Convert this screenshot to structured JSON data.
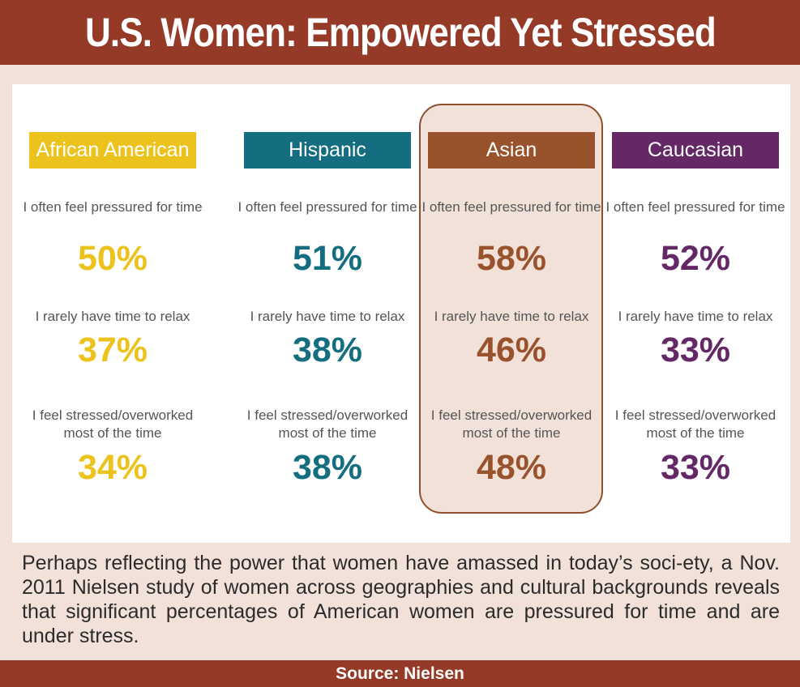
{
  "title": "U.S. Women: Empowered Yet Stressed",
  "description": "Perhaps reflecting the power that women have amassed in today’s soci-ety, a Nov. 2011 Nielsen study of women across geographies and cultural backgrounds reveals that significant percentages of American women are pressured for time and are under stress.",
  "source": "Source: Nielsen",
  "colors": {
    "title_bar": "#963a28",
    "background": "#f2e1d9",
    "highlight_border": "#8e4f2c"
  },
  "chart_data": {
    "type": "table",
    "highlighted_group": "Asian",
    "groups": [
      {
        "name": "African American",
        "color": "#ecc21d",
        "stats": [
          {
            "label": "I often feel pressured for time",
            "value": "50%"
          },
          {
            "label": "I rarely have time to relax",
            "value": "37%"
          },
          {
            "label": "I feel stressed/overworked most of the time",
            "value": "34%"
          }
        ]
      },
      {
        "name": "Hispanic",
        "color": "#156e80",
        "stats": [
          {
            "label": "I often feel pressured for time",
            "value": "51%"
          },
          {
            "label": "I rarely have time to relax",
            "value": "38%"
          },
          {
            "label": "I feel stressed/overworked most of the time",
            "value": "38%"
          }
        ]
      },
      {
        "name": "Asian",
        "color": "#99532c",
        "stats": [
          {
            "label": "I often feel pressured for time",
            "value": "58%"
          },
          {
            "label": "I rarely have time to relax",
            "value": "46%"
          },
          {
            "label": "I feel stressed/overworked most of the time",
            "value": "48%"
          }
        ]
      },
      {
        "name": "Caucasian",
        "color": "#652867",
        "stats": [
          {
            "label": "I often feel pressured for time",
            "value": "52%"
          },
          {
            "label": "I rarely have time to relax",
            "value": "33%"
          },
          {
            "label": "I feel stressed/overworked most of the time",
            "value": "33%"
          }
        ]
      }
    ]
  }
}
